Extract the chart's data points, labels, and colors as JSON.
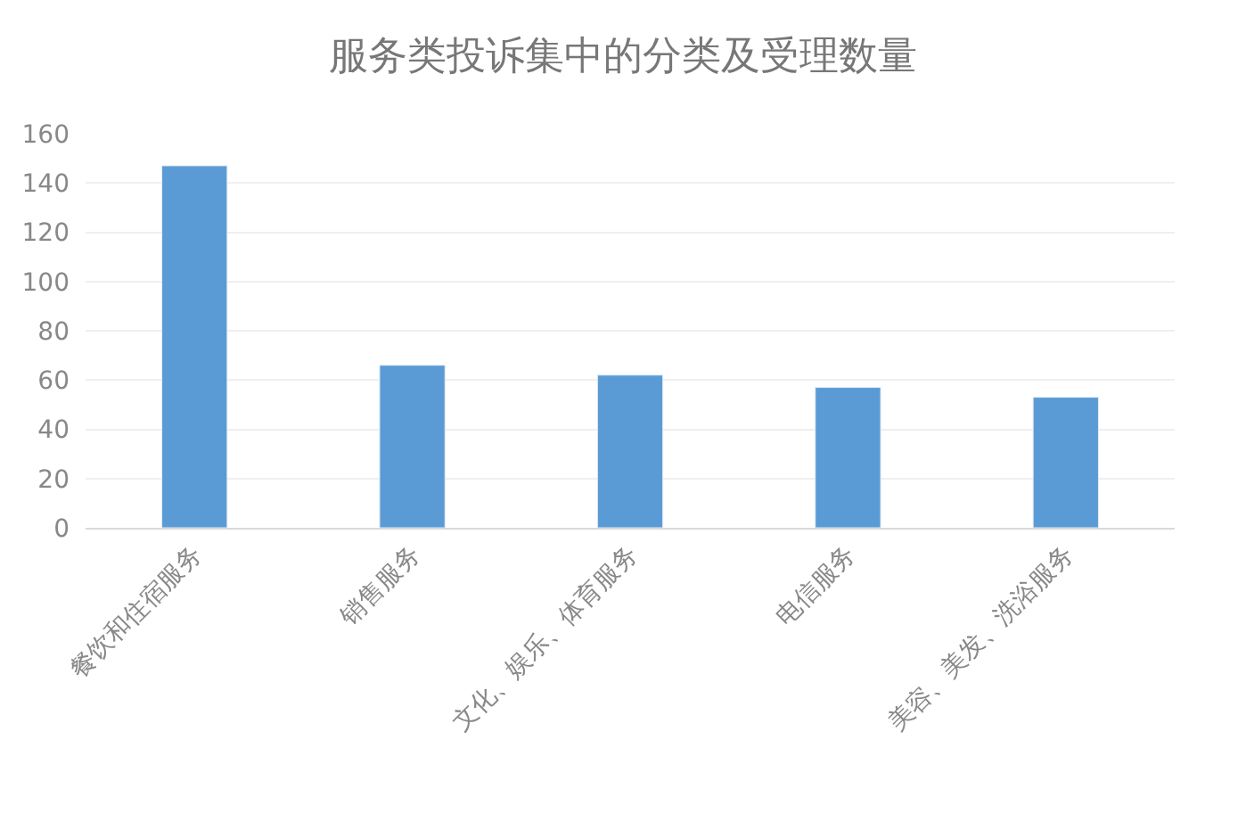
{
  "chart_data": {
    "type": "bar",
    "title": "服务类投诉集中的分类及受理数量",
    "categories": [
      "餐饮和住宿服务",
      "销售服务",
      "文化、娱乐、体育服务",
      "电信服务",
      "美容、美发、洗浴服务"
    ],
    "values": [
      147,
      66,
      62,
      57,
      53
    ],
    "color": "#5b9bd5",
    "ylim": [
      0,
      160
    ],
    "yticks": [
      0,
      20,
      40,
      60,
      80,
      100,
      120,
      140,
      160
    ],
    "grid": "y"
  }
}
